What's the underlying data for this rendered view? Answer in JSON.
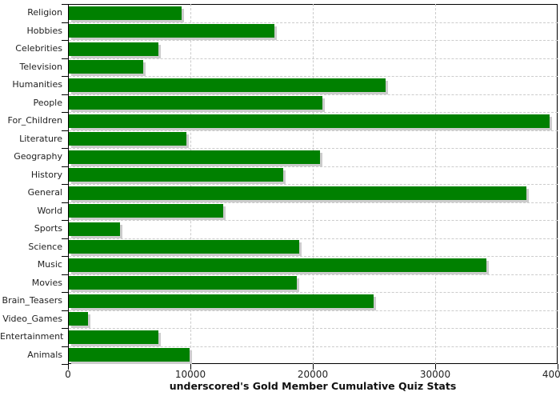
{
  "chart_data": {
    "type": "bar",
    "orientation": "horizontal",
    "title": "underscored's Gold Member Cumulative Quiz Stats",
    "categories": [
      "Religion",
      "Hobbies",
      "Celebrities",
      "Television",
      "Humanities",
      "People",
      "For_Children",
      "Literature",
      "Geography",
      "History",
      "General",
      "World",
      "Sports",
      "Science",
      "Music",
      "Movies",
      "Brain_Teasers",
      "Video_Games",
      "Entertainment",
      "Animals"
    ],
    "values": [
      9200,
      16800,
      7300,
      6100,
      25900,
      20700,
      39300,
      9600,
      20500,
      17500,
      37400,
      12600,
      4200,
      18800,
      34100,
      18600,
      24900,
      1600,
      7300,
      9900
    ],
    "xlim": [
      0,
      40000
    ],
    "x_tick_values": [
      0,
      10000,
      20000,
      30000,
      40000
    ],
    "x_tick_labels": [
      "0",
      "10000",
      "20000",
      "30000",
      "40000"
    ],
    "grid": "dashed",
    "legend": "none",
    "colors": {
      "bar": "#008000",
      "bar_shadow": "#cccccc",
      "grid": "#cccccc",
      "axis": "#000000",
      "text": "#222222",
      "background": "#ffffff"
    }
  }
}
